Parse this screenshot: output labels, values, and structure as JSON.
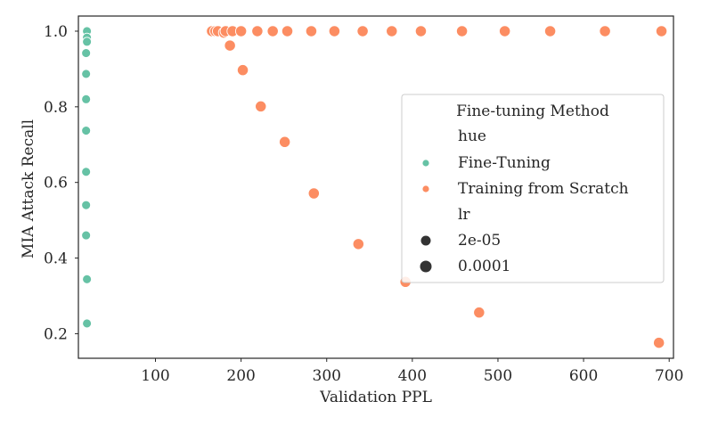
{
  "chart_data": {
    "type": "scatter",
    "xlabel": "Validation PPL",
    "ylabel": "MIA Attack Recall",
    "xlim": [
      10,
      705
    ],
    "ylim": [
      0.135,
      1.04
    ],
    "xticks": [
      100,
      200,
      300,
      400,
      500,
      600,
      700
    ],
    "yticks": [
      0.2,
      0.4,
      0.6,
      0.8,
      1.0
    ],
    "xtick_labels": [
      "100",
      "200",
      "300",
      "400",
      "500",
      "600",
      "700"
    ],
    "ytick_labels": [
      "0.2",
      "0.4",
      "0.6",
      "0.8",
      "1.0"
    ],
    "grid": false,
    "legend": {
      "placement": "center-right",
      "title": "Fine-tuning Method",
      "hue_title": "hue",
      "size_title": "lr",
      "size_entries": [
        "2e-05",
        "0.0001"
      ]
    },
    "series": [
      {
        "name": "Fine-Tuning",
        "color": "#66c2a5",
        "points": [
          {
            "x": 20,
            "y": 1.0,
            "lr": "2e-05"
          },
          {
            "x": 20,
            "y": 0.983,
            "lr": "2e-05"
          },
          {
            "x": 20,
            "y": 0.972,
            "lr": "2e-05"
          },
          {
            "x": 19,
            "y": 0.942,
            "lr": "2e-05"
          },
          {
            "x": 19,
            "y": 0.887,
            "lr": "2e-05"
          },
          {
            "x": 19,
            "y": 0.82,
            "lr": "2e-05"
          },
          {
            "x": 19,
            "y": 0.737,
            "lr": "2e-05"
          },
          {
            "x": 19,
            "y": 0.628,
            "lr": "2e-05"
          },
          {
            "x": 19,
            "y": 0.54,
            "lr": "2e-05"
          },
          {
            "x": 19,
            "y": 0.46,
            "lr": "2e-05"
          },
          {
            "x": 20,
            "y": 0.344,
            "lr": "2e-05"
          },
          {
            "x": 20,
            "y": 0.227,
            "lr": "2e-05"
          }
        ]
      },
      {
        "name": "Training from Scratch",
        "color": "#fc8d62",
        "points": [
          {
            "x": 166,
            "y": 1.0,
            "lr": "0.0001"
          },
          {
            "x": 170,
            "y": 1.0,
            "lr": "0.0001"
          },
          {
            "x": 173,
            "y": 1.0,
            "lr": "0.0001"
          },
          {
            "x": 180,
            "y": 0.996,
            "lr": "0.0001"
          },
          {
            "x": 182,
            "y": 1.0,
            "lr": "0.0001"
          },
          {
            "x": 190,
            "y": 1.0,
            "lr": "0.0001"
          },
          {
            "x": 200,
            "y": 1.0,
            "lr": "0.0001"
          },
          {
            "x": 219,
            "y": 1.0,
            "lr": "0.0001"
          },
          {
            "x": 237,
            "y": 1.0,
            "lr": "0.0001"
          },
          {
            "x": 254,
            "y": 1.0,
            "lr": "0.0001"
          },
          {
            "x": 282,
            "y": 1.0,
            "lr": "0.0001"
          },
          {
            "x": 309,
            "y": 1.0,
            "lr": "0.0001"
          },
          {
            "x": 342,
            "y": 1.0,
            "lr": "0.0001"
          },
          {
            "x": 376,
            "y": 1.0,
            "lr": "0.0001"
          },
          {
            "x": 410,
            "y": 1.0,
            "lr": "0.0001"
          },
          {
            "x": 458,
            "y": 1.0,
            "lr": "0.0001"
          },
          {
            "x": 508,
            "y": 1.0,
            "lr": "0.0001"
          },
          {
            "x": 561,
            "y": 1.0,
            "lr": "0.0001"
          },
          {
            "x": 625,
            "y": 1.0,
            "lr": "0.0001"
          },
          {
            "x": 691,
            "y": 1.0,
            "lr": "0.0001"
          },
          {
            "x": 187,
            "y": 0.962,
            "lr": "0.0001"
          },
          {
            "x": 202,
            "y": 0.897,
            "lr": "0.0001"
          },
          {
            "x": 223,
            "y": 0.801,
            "lr": "0.0001"
          },
          {
            "x": 251,
            "y": 0.707,
            "lr": "0.0001"
          },
          {
            "x": 285,
            "y": 0.571,
            "lr": "0.0001"
          },
          {
            "x": 337,
            "y": 0.437,
            "lr": "0.0001"
          },
          {
            "x": 392,
            "y": 0.337,
            "lr": "0.0001"
          },
          {
            "x": 478,
            "y": 0.256,
            "lr": "0.0001"
          },
          {
            "x": 688,
            "y": 0.176,
            "lr": "0.0001"
          }
        ]
      }
    ]
  }
}
